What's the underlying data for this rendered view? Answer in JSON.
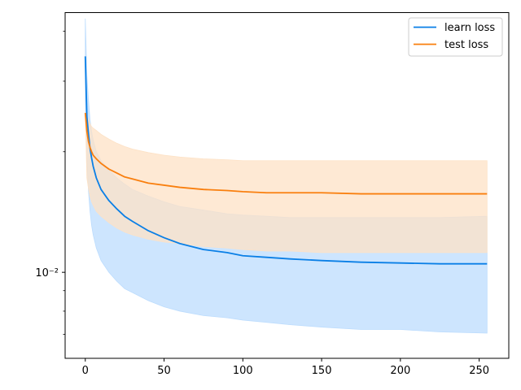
{
  "chart_data": {
    "type": "line",
    "title": "",
    "xlabel": "",
    "ylabel": "",
    "yscale": "log",
    "xlim": [
      -12.8,
      268.8
    ],
    "ylim": [
      0.0061,
      0.0445
    ],
    "x_ticks": [
      0,
      50,
      100,
      150,
      200,
      250
    ],
    "x_tick_labels": [
      "0",
      "50",
      "100",
      "150",
      "200",
      "250"
    ],
    "y_major_ticks": [
      0.01
    ],
    "y_major_tick_labels": [
      "10⁻²"
    ],
    "y_minor_ticks": [
      0.007,
      0.008,
      0.009,
      0.02,
      0.03,
      0.04
    ],
    "grid": false,
    "legend_position": "upper right",
    "x": [
      0,
      1,
      2,
      3,
      4,
      5,
      7,
      10,
      15,
      20,
      25,
      30,
      40,
      50,
      60,
      75,
      90,
      100,
      115,
      130,
      150,
      175,
      200,
      225,
      255
    ],
    "series": [
      {
        "name": "learn loss",
        "color": "#0a7fe6",
        "band_color": "#bcdcfd",
        "values": [
          0.0346,
          0.0245,
          0.0222,
          0.0204,
          0.0193,
          0.0184,
          0.0172,
          0.0161,
          0.0151,
          0.0144,
          0.0138,
          0.0134,
          0.0127,
          0.0122,
          0.0118,
          0.0114,
          0.0112,
          0.011,
          0.0109,
          0.0108,
          0.0107,
          0.0106,
          0.01055,
          0.0105,
          0.0105
        ],
        "lower": [
          0.0271,
          0.019,
          0.016,
          0.0142,
          0.0131,
          0.0124,
          0.0115,
          0.0107,
          0.01,
          0.0095,
          0.0091,
          0.0089,
          0.0085,
          0.0082,
          0.008,
          0.0078,
          0.0077,
          0.0076,
          0.0075,
          0.0074,
          0.0073,
          0.0072,
          0.0072,
          0.0071,
          0.00705
        ],
        "upper": [
          0.043,
          0.031,
          0.027,
          0.024,
          0.0225,
          0.0214,
          0.02,
          0.019,
          0.018,
          0.0172,
          0.0166,
          0.0161,
          0.0155,
          0.015,
          0.0146,
          0.0143,
          0.014,
          0.0139,
          0.0138,
          0.0137,
          0.0137,
          0.0137,
          0.0137,
          0.0137,
          0.0138
        ]
      },
      {
        "name": "test loss",
        "color": "#f97f0e",
        "band_color": "#fde2c6",
        "values": [
          0.025,
          0.0225,
          0.0212,
          0.0205,
          0.02,
          0.0196,
          0.0192,
          0.0187,
          0.0181,
          0.0177,
          0.0173,
          0.0171,
          0.0167,
          0.0165,
          0.0163,
          0.0161,
          0.016,
          0.0159,
          0.0158,
          0.0158,
          0.0158,
          0.0157,
          0.0157,
          0.0157,
          0.0157
        ],
        "lower": [
          0.025,
          0.0172,
          0.0162,
          0.0155,
          0.015,
          0.0147,
          0.0142,
          0.0138,
          0.0133,
          0.0129,
          0.0126,
          0.0124,
          0.0121,
          0.0119,
          0.0118,
          0.0116,
          0.0115,
          0.0114,
          0.0113,
          0.0113,
          0.0112,
          0.0112,
          0.0112,
          0.0112,
          0.0112
        ],
        "upper": [
          0.025,
          0.0245,
          0.024,
          0.0235,
          0.0231,
          0.0229,
          0.0226,
          0.0221,
          0.0215,
          0.021,
          0.0206,
          0.0203,
          0.0199,
          0.0196,
          0.0194,
          0.0192,
          0.0191,
          0.019,
          0.019,
          0.019,
          0.019,
          0.019,
          0.019,
          0.019,
          0.019
        ]
      }
    ]
  }
}
